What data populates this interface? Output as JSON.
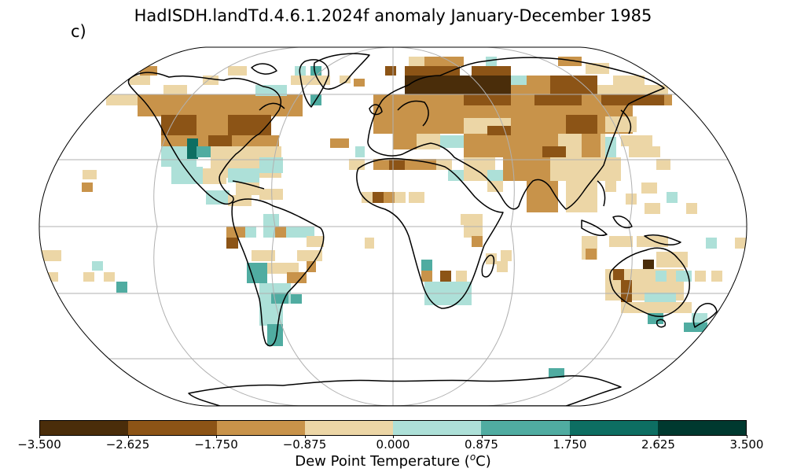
{
  "title": "HadISDH.landTd.4.6.1.2024f anomaly January-December 1985",
  "panel_label": "c)",
  "colorbar": {
    "colors": [
      "#4a2d0a",
      "#8c5416",
      "#c8934a",
      "#ecd6a6",
      "#ade0d8",
      "#50aca1",
      "#0d6e62",
      "#00392f"
    ],
    "ticks": [
      "−3.500",
      "−2.625",
      "−1.750",
      "−0.875",
      "0.000",
      "0.875",
      "1.750",
      "2.625",
      "3.500"
    ],
    "label_prefix": "Dew Point Temperature (",
    "label_unit_sup": "o",
    "label_suffix": "C)"
  },
  "map": {
    "projection": "Robinson",
    "gridlines": true,
    "ocean_color": "#ffffff",
    "coastline_color": "#000000",
    "grid_color": "#b0b0b0"
  }
}
